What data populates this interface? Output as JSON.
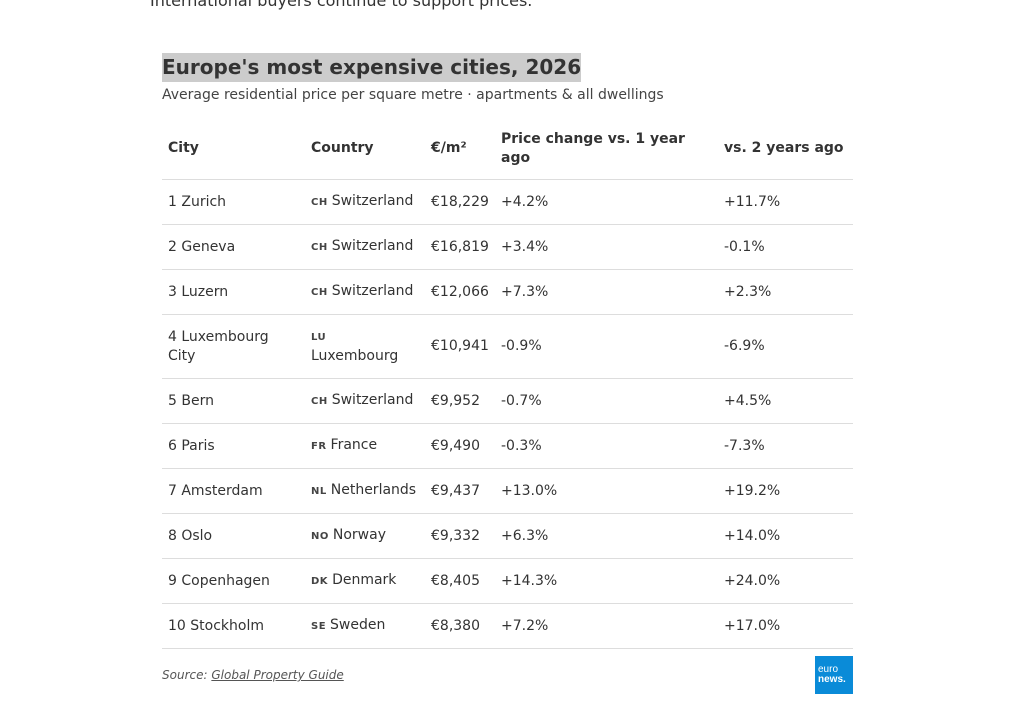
{
  "intro": "International buyers continue to support prices.",
  "chart": {
    "title": "Europe's most expensive cities, 2026",
    "subtitle": "Average residential price per square metre · apartments & all dwellings",
    "headers": {
      "city": "City",
      "country": "Country",
      "price": "€/m²",
      "change_1y": "Price change vs. 1 year ago",
      "change_2y": "vs. 2 years ago"
    },
    "rows": [
      {
        "city": "1 Zurich",
        "flag": "CH",
        "country": "Switzerland",
        "price": "€18,229",
        "change_1y": "+4.2%",
        "change_2y": "+11.7%"
      },
      {
        "city": "2 Geneva",
        "flag": "CH",
        "country": "Switzerland",
        "price": "€16,819",
        "change_1y": "+3.4%",
        "change_2y": "-0.1%"
      },
      {
        "city": "3 Luzern",
        "flag": "CH",
        "country": "Switzerland",
        "price": "€12,066",
        "change_1y": "+7.3%",
        "change_2y": "+2.3%"
      },
      {
        "city": "4 Luxembourg City",
        "flag": "LU",
        "country": "Luxembourg",
        "price": "€10,941",
        "change_1y": "-0.9%",
        "change_2y": "-6.9%"
      },
      {
        "city": "5 Bern",
        "flag": "CH",
        "country": "Switzerland",
        "price": "€9,952",
        "change_1y": "-0.7%",
        "change_2y": "+4.5%"
      },
      {
        "city": "6 Paris",
        "flag": "FR",
        "country": "France",
        "price": "€9,490",
        "change_1y": "-0.3%",
        "change_2y": "-7.3%"
      },
      {
        "city": "7 Amsterdam",
        "flag": "NL",
        "country": "Netherlands",
        "price": "€9,437",
        "change_1y": "+13.0%",
        "change_2y": "+19.2%"
      },
      {
        "city": "8 Oslo",
        "flag": "NO",
        "country": "Norway",
        "price": "€9,332",
        "change_1y": "+6.3%",
        "change_2y": "+14.0%"
      },
      {
        "city": "9 Copenhagen",
        "flag": "DK",
        "country": "Denmark",
        "price": "€8,405",
        "change_1y": "+14.3%",
        "change_2y": "+24.0%"
      },
      {
        "city": "10 Stockholm",
        "flag": "SE",
        "country": "Sweden",
        "price": "€8,380",
        "change_1y": "+7.2%",
        "change_2y": "+17.0%"
      }
    ],
    "source_label": "Source:",
    "source_link": "Global Property Guide"
  },
  "logo": {
    "line1": "euro",
    "line2": "news.",
    "color": "#0a8bd8"
  }
}
